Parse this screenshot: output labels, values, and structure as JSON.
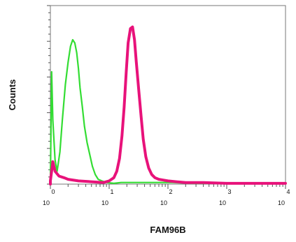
{
  "chart_data": {
    "type": "area",
    "title": "",
    "xlabel": "FAM96B",
    "ylabel": "Counts",
    "xscale": "log",
    "xlim": [
      1,
      10000
    ],
    "ylim": [
      0,
      100
    ],
    "grid": false,
    "legend": "none",
    "tick_labels": [
      {
        "base": "10",
        "exp": "0"
      },
      {
        "base": "10",
        "exp": "1"
      },
      {
        "base": "10",
        "exp": "2"
      },
      {
        "base": "10",
        "exp": "3"
      },
      {
        "base": "10",
        "exp": "4"
      }
    ],
    "series": [
      {
        "color": "#33dd33",
        "x": [
          1.0,
          1.05,
          1.1,
          1.2,
          1.3,
          1.45,
          1.6,
          1.8,
          2.0,
          2.2,
          2.4,
          2.6,
          2.8,
          3.0,
          3.2,
          3.5,
          3.8,
          4.2,
          4.7,
          5.2,
          5.8,
          6.5,
          7.5,
          9.0,
          12,
          16,
          25,
          40,
          70,
          120,
          300,
          1000,
          10000
        ],
        "y": [
          2,
          70,
          40,
          15,
          8,
          20,
          40,
          62,
          76,
          86,
          90,
          88,
          82,
          72,
          60,
          48,
          36,
          26,
          18,
          11,
          6,
          3,
          2,
          1,
          0.5,
          1,
          1,
          1,
          1,
          1,
          0.5,
          0.5,
          0.5
        ]
      },
      {
        "color": "#e8127a",
        "x": [
          1.0,
          1.05,
          1.1,
          1.2,
          1.4,
          1.7,
          2.0,
          3.0,
          5.0,
          8.0,
          10,
          12,
          13.5,
          15,
          16.5,
          18,
          19.5,
          21,
          23,
          25,
          27,
          29,
          32,
          35,
          38,
          42,
          47,
          53,
          60,
          70,
          85,
          100,
          140,
          200,
          400,
          1000,
          10000
        ],
        "y": [
          2,
          8,
          14,
          8,
          5,
          4,
          3,
          2,
          1.5,
          1,
          2,
          4,
          8,
          16,
          30,
          48,
          70,
          88,
          97,
          98,
          90,
          76,
          58,
          42,
          28,
          17,
          10,
          6,
          4,
          3,
          2.5,
          2,
          1.5,
          1,
          1,
          0.5,
          0.5
        ]
      }
    ]
  }
}
